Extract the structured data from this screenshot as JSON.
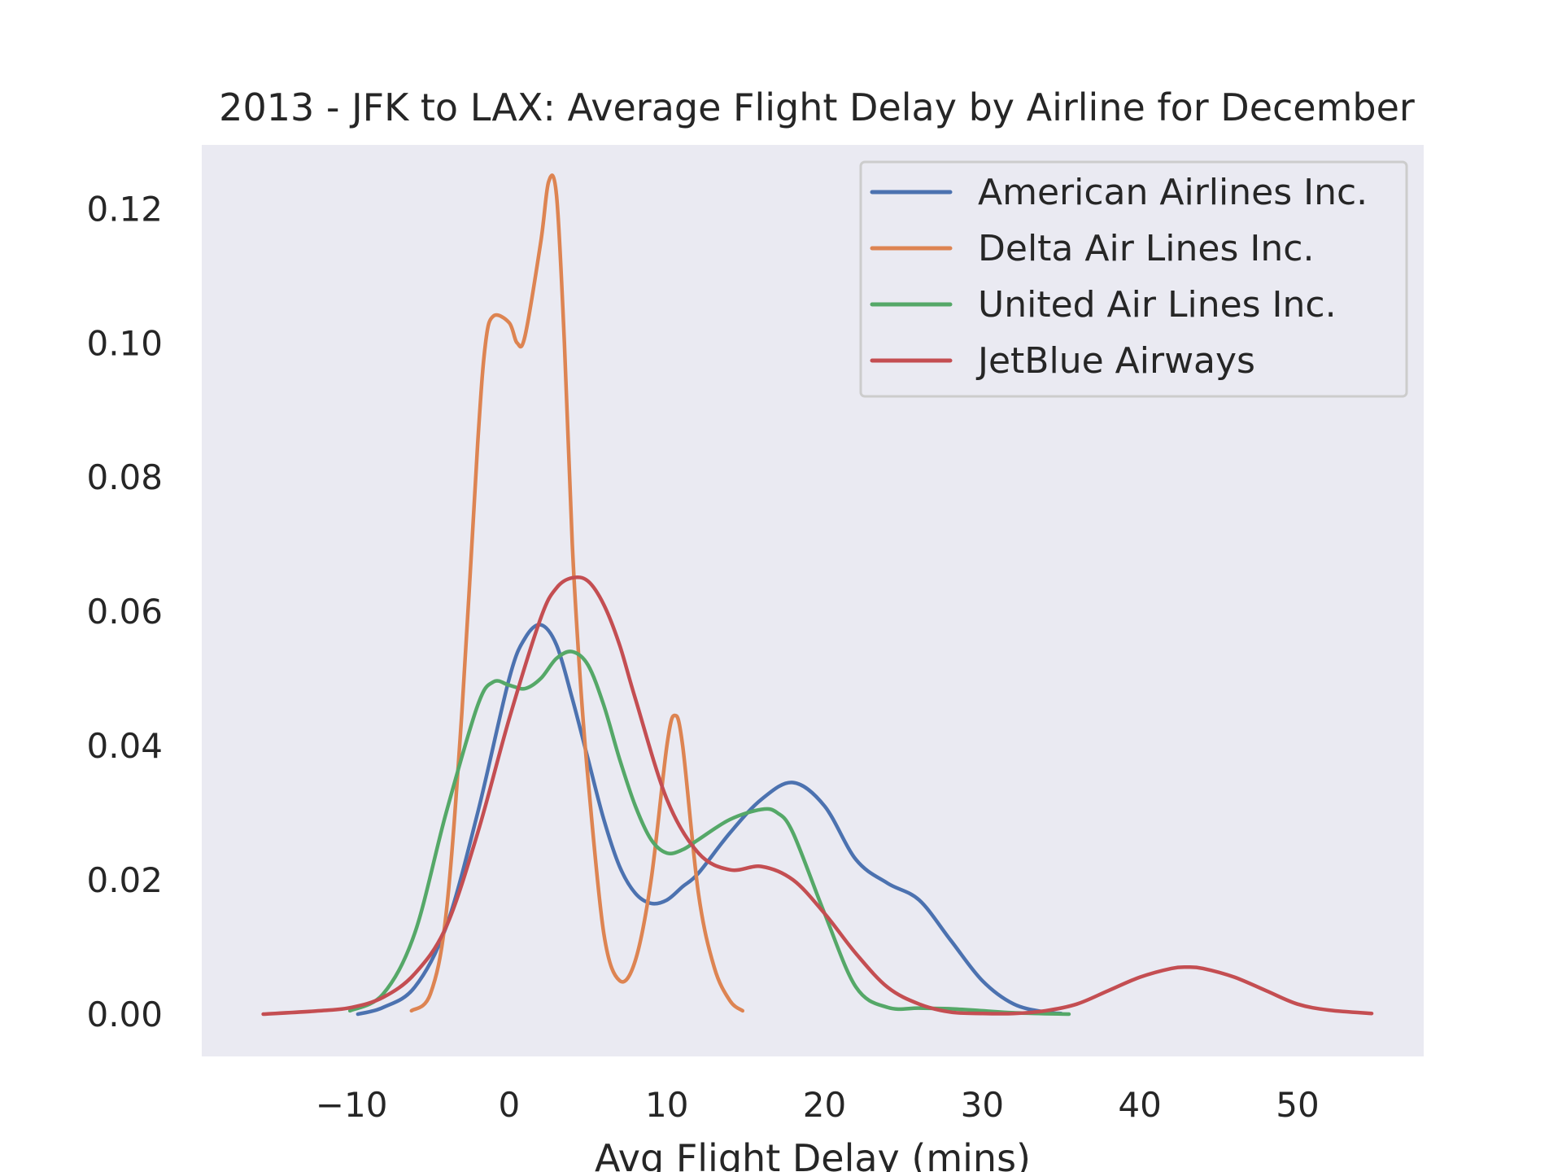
{
  "chart_data": {
    "type": "line",
    "title": "2013 - JFK to LAX: Average Flight Delay by Airline for December",
    "xlabel": "Avg Flight Delay (mins)",
    "ylabel": "",
    "xlim": [
      -19.5,
      58
    ],
    "ylim": [
      -0.0063,
      0.1295
    ],
    "xticks": [
      -10,
      0,
      10,
      20,
      30,
      40,
      50
    ],
    "xtick_labels": [
      "−10",
      "0",
      "10",
      "20",
      "30",
      "40",
      "50"
    ],
    "yticks": [
      0.0,
      0.02,
      0.04,
      0.06,
      0.08,
      0.1,
      0.12
    ],
    "ytick_labels": [
      "0.00",
      "0.02",
      "0.04",
      "0.06",
      "0.08",
      "0.10",
      "0.12"
    ],
    "grid": false,
    "background": "#eaeaf2",
    "legend_position": "top-right",
    "series": [
      {
        "name": "American Airlines Inc.",
        "color": "#4c72b0",
        "x": [
          -9.6,
          -8,
          -6,
          -4,
          -2,
          0,
          1,
          2,
          3,
          4,
          5,
          6,
          7,
          8,
          9,
          10,
          11,
          12,
          14,
          16,
          18,
          20,
          22,
          24,
          26,
          28,
          30,
          32,
          34,
          35
        ],
        "y": [
          0.0,
          0.001,
          0.004,
          0.013,
          0.03,
          0.05,
          0.056,
          0.058,
          0.055,
          0.047,
          0.038,
          0.029,
          0.022,
          0.018,
          0.0165,
          0.017,
          0.019,
          0.021,
          0.027,
          0.032,
          0.0345,
          0.031,
          0.023,
          0.0195,
          0.017,
          0.011,
          0.005,
          0.0015,
          0.0003,
          0.0001
        ]
      },
      {
        "name": "Delta Air Lines Inc.",
        "color": "#dd8452",
        "x": [
          -6.2,
          -5,
          -4,
          -3,
          -2,
          -1.5,
          -1,
          0,
          0.5,
          1,
          2,
          2.5,
          3,
          3.5,
          4,
          4.5,
          5,
          6,
          7,
          8,
          9,
          10,
          10.5,
          11,
          12,
          13,
          14,
          14.8
        ],
        "y": [
          0.0005,
          0.003,
          0.015,
          0.045,
          0.085,
          0.1,
          0.104,
          0.103,
          0.1,
          0.101,
          0.115,
          0.124,
          0.122,
          0.1,
          0.07,
          0.05,
          0.035,
          0.012,
          0.005,
          0.008,
          0.02,
          0.04,
          0.0445,
          0.04,
          0.018,
          0.007,
          0.002,
          0.0005
        ]
      },
      {
        "name": "United Air Lines Inc.",
        "color": "#55a868",
        "x": [
          -10.1,
          -8,
          -6,
          -4,
          -2,
          -1,
          0,
          1,
          2,
          3,
          4,
          5,
          6,
          7,
          8,
          9,
          10,
          11,
          12,
          14,
          16,
          17,
          18,
          20,
          22,
          24,
          26,
          28,
          30,
          32,
          35.5
        ],
        "y": [
          0.0005,
          0.003,
          0.012,
          0.03,
          0.046,
          0.0495,
          0.049,
          0.0485,
          0.05,
          0.053,
          0.054,
          0.052,
          0.046,
          0.038,
          0.031,
          0.026,
          0.024,
          0.0245,
          0.026,
          0.029,
          0.0305,
          0.03,
          0.027,
          0.015,
          0.004,
          0.001,
          0.0009,
          0.0008,
          0.0005,
          0.0002,
          0.0
        ]
      },
      {
        "name": "JetBlue Airways",
        "color": "#c44e52",
        "x": [
          -15.6,
          -12,
          -10,
          -8,
          -6,
          -4,
          -2,
          0,
          2,
          3,
          4,
          5,
          6,
          7,
          8,
          10,
          12,
          14,
          16,
          18,
          20,
          22,
          24,
          26,
          28,
          30,
          32,
          34,
          36,
          38,
          40,
          42,
          43,
          44,
          46,
          48,
          50,
          52,
          54.7
        ],
        "y": [
          0.0,
          0.0005,
          0.001,
          0.0025,
          0.006,
          0.013,
          0.027,
          0.044,
          0.059,
          0.0635,
          0.065,
          0.0645,
          0.061,
          0.055,
          0.047,
          0.032,
          0.024,
          0.0215,
          0.022,
          0.02,
          0.015,
          0.009,
          0.004,
          0.0015,
          0.0003,
          0.0001,
          0.0001,
          0.0005,
          0.0015,
          0.0035,
          0.0055,
          0.0068,
          0.007,
          0.0068,
          0.0055,
          0.0035,
          0.0015,
          0.0006,
          0.0001
        ]
      }
    ]
  }
}
